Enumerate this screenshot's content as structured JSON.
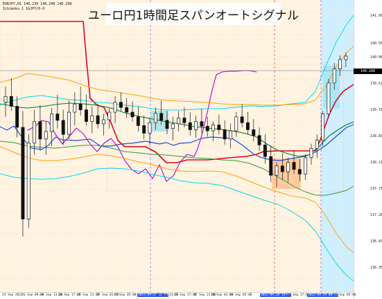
{
  "window": {
    "symbol_line": "EURJPY,H1  140.239 140.248 140.268",
    "indicator_line": "Ichimoku  1 1&JPY/0-0"
  },
  "title": "ユーロ円1時間足スパンオートシグナル",
  "price_scale": {
    "labels": [
      "141.000",
      "140.560",
      "140.080",
      "139.615",
      "139.150",
      "138.680",
      "138.215",
      "137.750",
      "137.280",
      "136.815",
      "136.350"
    ],
    "current_price": "140.268"
  },
  "time_scale": {
    "labels": [
      {
        "text": "24 Sep 2022",
        "highlight": false
      },
      {
        "text": "26 Sep 09:00",
        "highlight": false
      },
      {
        "text": "26 Sep 13:00",
        "highlight": false
      },
      {
        "text": "26 Sep 17:00",
        "highlight": false
      },
      {
        "text": "26 Sep 21:00",
        "highlight": false
      },
      {
        "text": "27 Sep 01:00",
        "highlight": false
      },
      {
        "text": "27 Sep 05:00",
        "highlight": false
      },
      {
        "text": "2022.09.27 12:00",
        "highlight": true
      },
      {
        "text": "27 Sep 13:00",
        "highlight": false
      },
      {
        "text": "27 Sep 17:00",
        "highlight": false
      },
      {
        "text": "27 Sep 21:00",
        "highlight": false
      },
      {
        "text": "28 Sep 01:00",
        "highlight": false
      },
      {
        "text": "28 Sep 05:00",
        "highlight": false
      },
      {
        "text": "2022.09.28 14:00",
        "highlight": true
      },
      {
        "text": "28 Sep 17:00",
        "highlight": false
      },
      {
        "text": "2022.09.29 00:00",
        "highlight": true
      },
      {
        "text": "29 Sep 05:00",
        "highlight": false
      }
    ]
  },
  "chart_data": {
    "type": "candlestick",
    "title": "ユーロ円1時間足スパンオートシグナル",
    "ylim": [
      136.2,
      141.2
    ],
    "candles": [
      {
        "o": 139.45,
        "h": 139.72,
        "l": 139.2,
        "c": 139.55
      },
      {
        "o": 139.55,
        "h": 139.86,
        "l": 139.3,
        "c": 139.38
      },
      {
        "o": 139.38,
        "h": 139.55,
        "l": 138.85,
        "c": 139.02
      },
      {
        "o": 139.02,
        "h": 139.3,
        "l": 137.15,
        "c": 137.45
      },
      {
        "o": 137.45,
        "h": 138.9,
        "l": 137.3,
        "c": 138.75
      },
      {
        "o": 138.75,
        "h": 139.32,
        "l": 138.55,
        "c": 139.12
      },
      {
        "o": 139.12,
        "h": 139.4,
        "l": 138.62,
        "c": 138.82
      },
      {
        "o": 138.82,
        "h": 139.12,
        "l": 138.55,
        "c": 138.95
      },
      {
        "o": 138.95,
        "h": 139.35,
        "l": 138.7,
        "c": 139.25
      },
      {
        "o": 139.25,
        "h": 139.58,
        "l": 139.0,
        "c": 139.14
      },
      {
        "o": 139.14,
        "h": 139.32,
        "l": 138.72,
        "c": 138.9
      },
      {
        "o": 138.9,
        "h": 139.48,
        "l": 138.82,
        "c": 139.28
      },
      {
        "o": 139.28,
        "h": 139.62,
        "l": 139.05,
        "c": 139.42
      },
      {
        "o": 139.42,
        "h": 139.72,
        "l": 139.22,
        "c": 139.32
      },
      {
        "o": 139.32,
        "h": 139.58,
        "l": 139.05,
        "c": 139.12
      },
      {
        "o": 139.12,
        "h": 139.38,
        "l": 138.92,
        "c": 139.22
      },
      {
        "o": 139.22,
        "h": 139.42,
        "l": 139.0,
        "c": 139.08
      },
      {
        "o": 139.08,
        "h": 139.25,
        "l": 138.88,
        "c": 139.15
      },
      {
        "o": 139.15,
        "h": 139.35,
        "l": 139.0,
        "c": 139.28
      },
      {
        "o": 139.28,
        "h": 139.55,
        "l": 139.1,
        "c": 139.45
      },
      {
        "o": 139.45,
        "h": 139.62,
        "l": 139.3,
        "c": 139.36
      },
      {
        "o": 139.36,
        "h": 139.52,
        "l": 139.18,
        "c": 139.28
      },
      {
        "o": 139.28,
        "h": 139.46,
        "l": 139.12,
        "c": 139.2
      },
      {
        "o": 139.2,
        "h": 139.38,
        "l": 138.95,
        "c": 139.05
      },
      {
        "o": 139.05,
        "h": 139.22,
        "l": 138.82,
        "c": 138.92
      },
      {
        "o": 138.92,
        "h": 139.18,
        "l": 138.72,
        "c": 139.1
      },
      {
        "o": 139.1,
        "h": 139.36,
        "l": 138.98,
        "c": 139.26
      },
      {
        "o": 139.26,
        "h": 139.48,
        "l": 139.06,
        "c": 139.14
      },
      {
        "o": 139.14,
        "h": 139.3,
        "l": 138.9,
        "c": 139.0
      },
      {
        "o": 139.0,
        "h": 139.2,
        "l": 138.8,
        "c": 139.08
      },
      {
        "o": 139.08,
        "h": 139.3,
        "l": 138.95,
        "c": 139.18
      },
      {
        "o": 139.18,
        "h": 139.36,
        "l": 139.02,
        "c": 139.1
      },
      {
        "o": 139.1,
        "h": 139.28,
        "l": 138.88,
        "c": 138.98
      },
      {
        "o": 138.98,
        "h": 139.22,
        "l": 138.84,
        "c": 139.12
      },
      {
        "o": 139.12,
        "h": 139.34,
        "l": 138.92,
        "c": 139.04
      },
      {
        "o": 139.04,
        "h": 139.2,
        "l": 138.86,
        "c": 138.96
      },
      {
        "o": 138.96,
        "h": 139.12,
        "l": 138.78,
        "c": 139.06
      },
      {
        "o": 139.06,
        "h": 139.24,
        "l": 138.9,
        "c": 138.98
      },
      {
        "o": 138.98,
        "h": 139.14,
        "l": 138.72,
        "c": 138.82
      },
      {
        "o": 138.82,
        "h": 139.08,
        "l": 138.66,
        "c": 138.96
      },
      {
        "o": 138.96,
        "h": 139.28,
        "l": 138.86,
        "c": 139.2
      },
      {
        "o": 139.2,
        "h": 139.42,
        "l": 139.02,
        "c": 139.1
      },
      {
        "o": 139.1,
        "h": 139.28,
        "l": 138.9,
        "c": 138.98
      },
      {
        "o": 138.98,
        "h": 139.16,
        "l": 138.78,
        "c": 138.88
      },
      {
        "o": 138.88,
        "h": 139.02,
        "l": 138.62,
        "c": 138.72
      },
      {
        "o": 138.72,
        "h": 138.9,
        "l": 138.4,
        "c": 138.52
      },
      {
        "o": 138.52,
        "h": 138.7,
        "l": 138.08,
        "c": 138.2
      },
      {
        "o": 138.2,
        "h": 138.42,
        "l": 138.0,
        "c": 138.36
      },
      {
        "o": 138.36,
        "h": 138.58,
        "l": 138.12,
        "c": 138.26
      },
      {
        "o": 138.26,
        "h": 138.5,
        "l": 138.08,
        "c": 138.42
      },
      {
        "o": 138.42,
        "h": 138.62,
        "l": 138.22,
        "c": 138.3
      },
      {
        "o": 138.3,
        "h": 138.48,
        "l": 138.1,
        "c": 138.22
      },
      {
        "o": 138.22,
        "h": 138.56,
        "l": 138.12,
        "c": 138.5
      },
      {
        "o": 138.5,
        "h": 138.74,
        "l": 138.38,
        "c": 138.66
      },
      {
        "o": 138.66,
        "h": 138.9,
        "l": 138.5,
        "c": 138.8
      },
      {
        "o": 138.8,
        "h": 139.3,
        "l": 138.7,
        "c": 139.25
      },
      {
        "o": 139.25,
        "h": 139.85,
        "l": 139.18,
        "c": 139.78
      },
      {
        "o": 139.78,
        "h": 140.12,
        "l": 139.66,
        "c": 140.02
      },
      {
        "o": 140.02,
        "h": 140.25,
        "l": 139.9,
        "c": 140.18
      },
      {
        "o": 140.18,
        "h": 140.3,
        "l": 140.05,
        "c": 140.24
      }
    ]
  }
}
